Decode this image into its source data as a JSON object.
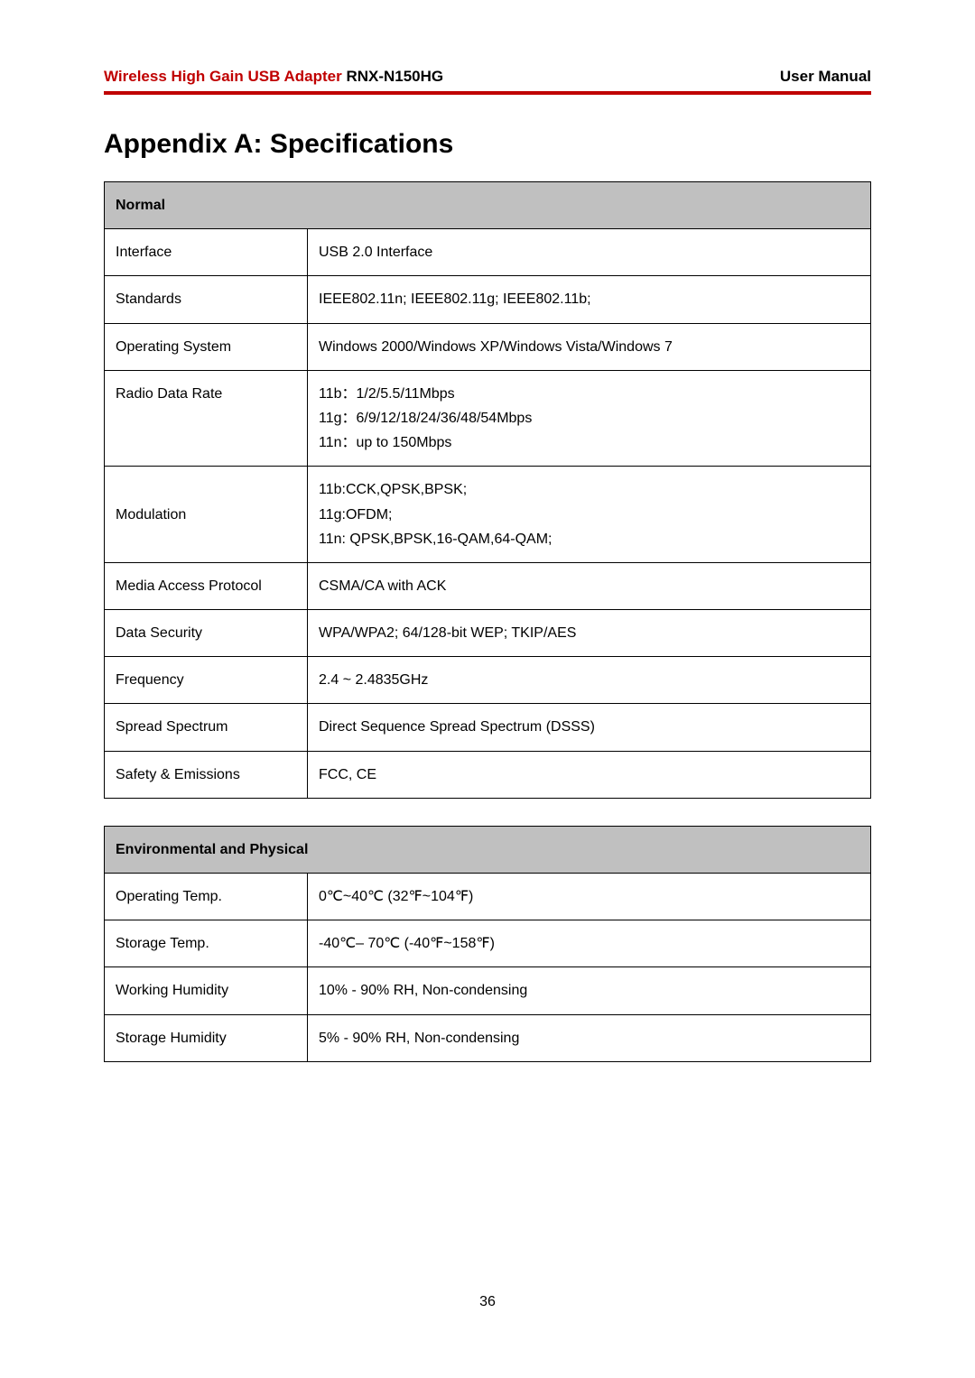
{
  "header": {
    "product_name_red": "Wireless High Gain USB Adapter",
    "product_model": " RNX-N150HG",
    "doc_type": "User Manual"
  },
  "page_title": "Appendix A: Specifications",
  "tables": {
    "normal": {
      "header": "Normal",
      "rows": [
        {
          "label": "Interface",
          "value": "USB 2.0 Interface"
        },
        {
          "label": "Standards",
          "value": "IEEE802.11n; IEEE802.11g; IEEE802.11b;"
        },
        {
          "label": "Operating System",
          "value": "Windows 2000/Windows XP/Windows Vista/Windows 7"
        },
        {
          "label": "Radio Data Rate",
          "value": "11b：1/2/5.5/11Mbps\n11g：6/9/12/18/24/36/48/54Mbps\n11n：up to 150Mbps"
        },
        {
          "label": "Modulation",
          "value": "11b:CCK,QPSK,BPSK;\n11g:OFDM;\n11n: QPSK,BPSK,16-QAM,64-QAM;"
        },
        {
          "label": "Media Access Protocol",
          "value": "CSMA/CA with ACK"
        },
        {
          "label": "Data Security",
          "value": "WPA/WPA2; 64/128-bit WEP; TKIP/AES"
        },
        {
          "label": "Frequency",
          "value": "2.4 ~ 2.4835GHz"
        },
        {
          "label": "Spread Spectrum",
          "value": "Direct Sequence Spread Spectrum (DSSS)"
        },
        {
          "label": "Safety & Emissions",
          "value": "FCC, CE"
        }
      ]
    },
    "environmental": {
      "header": "Environmental and Physical",
      "rows": [
        {
          "label": "Operating Temp.",
          "value": "0℃~40℃ (32℉~104℉)"
        },
        {
          "label": "Storage Temp.",
          "value": "-40℃– 70℃ (-40℉~158℉)"
        },
        {
          "label": "Working Humidity",
          "value": "10% - 90% RH, Non-condensing"
        },
        {
          "label": "Storage Humidity",
          "value": "5% - 90% RH, Non-condensing"
        }
      ]
    }
  },
  "page_number": "36",
  "styling": {
    "accent_color": "#c00000",
    "table_header_bg": "#c0c0c0",
    "border_color": "#000000",
    "body_bg": "#ffffff",
    "body_font_size": 16,
    "title_font_size": 30,
    "header_font_size": 17,
    "label_col_width": 225
  }
}
